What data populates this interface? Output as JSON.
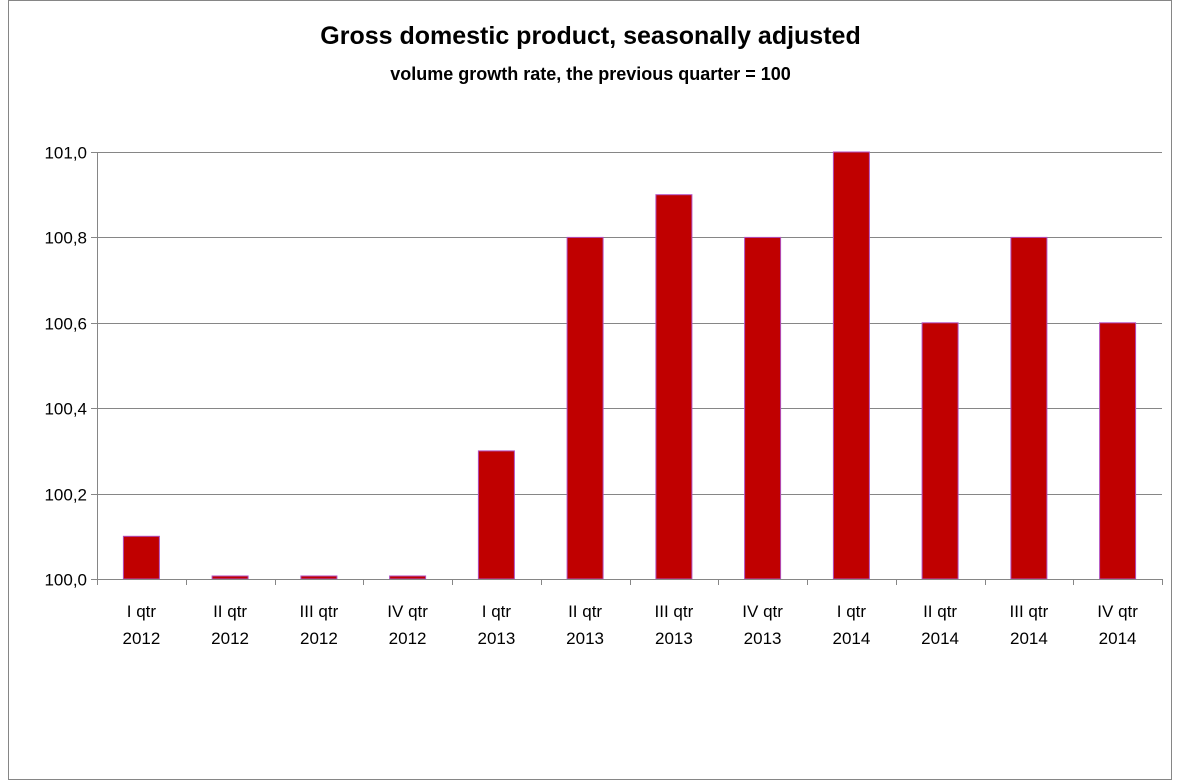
{
  "chart_data": {
    "type": "bar",
    "title": "Gross domestic product, seasonally adjusted",
    "subtitle": "volume growth rate, the previous quarter = 100",
    "xlabel": "",
    "ylabel": "",
    "categories": [
      [
        "I qtr",
        "2012"
      ],
      [
        "II qtr",
        "2012"
      ],
      [
        "III qtr",
        "2012"
      ],
      [
        "IV qtr",
        "2012"
      ],
      [
        "I qtr",
        "2013"
      ],
      [
        "II qtr",
        "2013"
      ],
      [
        "III qtr",
        "2013"
      ],
      [
        "IV qtr",
        "2013"
      ],
      [
        "I qtr",
        "2014"
      ],
      [
        "II qtr",
        "2014"
      ],
      [
        "III qtr",
        "2014"
      ],
      [
        "IV qtr",
        "2014"
      ]
    ],
    "values": [
      100.1,
      100.0,
      100.0,
      100.0,
      100.3,
      100.8,
      100.9,
      100.8,
      101.0,
      100.6,
      100.8,
      100.6
    ],
    "ylim": [
      100.0,
      101.0
    ],
    "yticks": [
      {
        "value": 100.0,
        "label": "100,0"
      },
      {
        "value": 100.2,
        "label": "100,2"
      },
      {
        "value": 100.4,
        "label": "100,4"
      },
      {
        "value": 100.6,
        "label": "100,6"
      },
      {
        "value": 100.8,
        "label": "100,8"
      },
      {
        "value": 101.0,
        "label": "101,0"
      }
    ],
    "grid": true,
    "legend": "none",
    "colors": {
      "bar_fill": "#c00000",
      "bar_stroke": "#b04fc0",
      "grid": "#868686",
      "axis": "#868686"
    }
  }
}
